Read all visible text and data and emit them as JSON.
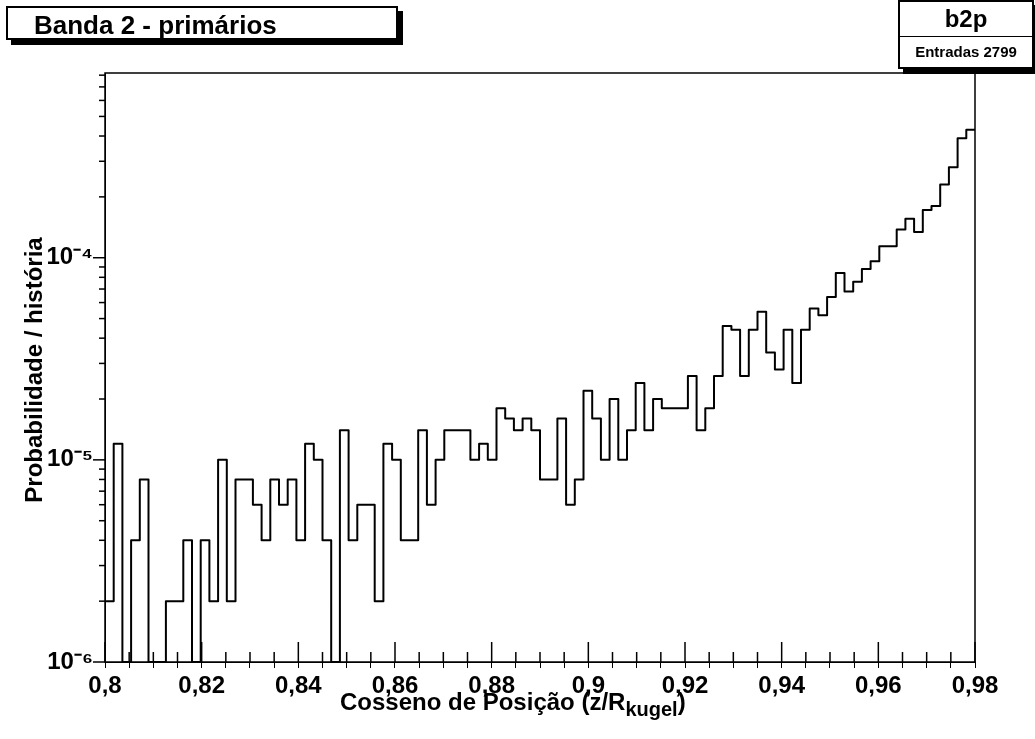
{
  "chart_data": {
    "type": "histogram",
    "title": "Banda 2 - primários",
    "xlabel": "Cosseno de Posição (z/R$_{kugel}$)",
    "ylabel": "Probabilidade / história",
    "annotations": [
      "b2p",
      "Entradas 2799"
    ],
    "color": "#000000",
    "log": "y",
    "bins": [
      0.8,
      0.8018,
      0.8036,
      0.8054,
      0.8072,
      0.809,
      0.8108,
      0.8126,
      0.8144,
      0.8162,
      0.818,
      0.8198,
      0.8216,
      0.8234,
      0.8252,
      0.827,
      0.8288,
      0.8306,
      0.8324,
      0.8342,
      0.836,
      0.8378,
      0.8396,
      0.8414,
      0.8432,
      0.845,
      0.8468,
      0.8486,
      0.8504,
      0.8522,
      0.854,
      0.8558,
      0.8576,
      0.8594,
      0.8612,
      0.863,
      0.8648,
      0.8666,
      0.8684,
      0.8702,
      0.872,
      0.8738,
      0.8756,
      0.8774,
      0.8792,
      0.881,
      0.8828,
      0.8846,
      0.8864,
      0.8882,
      0.89,
      0.8918,
      0.8936,
      0.8954,
      0.8972,
      0.899,
      0.9008,
      0.9026,
      0.9044,
      0.9062,
      0.908,
      0.9098,
      0.9116,
      0.9134,
      0.9152,
      0.917,
      0.9188,
      0.9206,
      0.9224,
      0.9242,
      0.926,
      0.9278,
      0.9296,
      0.9314,
      0.9332,
      0.935,
      0.9368,
      0.9386,
      0.9404,
      0.9422,
      0.944,
      0.9458,
      0.9476,
      0.9494,
      0.9512,
      0.953,
      0.9548,
      0.9566,
      0.9584,
      0.9602,
      0.962,
      0.9638,
      0.9656,
      0.9674,
      0.9692,
      0.971,
      0.9728,
      0.9746,
      0.9764,
      0.9782,
      0.98
    ],
    "values": [
      2e-06,
      1.2e-05,
      null,
      4e-06,
      8e-06,
      null,
      null,
      2e-06,
      2e-06,
      4e-06,
      null,
      4e-06,
      2e-06,
      1e-05,
      2e-06,
      8e-06,
      8e-06,
      6e-06,
      4e-06,
      8e-06,
      6e-06,
      8e-06,
      4e-06,
      1.2e-05,
      1e-05,
      4e-06,
      null,
      1.4e-05,
      4e-06,
      6e-06,
      6e-06,
      2e-06,
      1.2e-05,
      1e-05,
      4e-06,
      4e-06,
      1.4e-05,
      6e-06,
      1e-05,
      1.4e-05,
      1.4e-05,
      1.4e-05,
      1e-05,
      1.2e-05,
      1e-05,
      1.8e-05,
      1.6e-05,
      1.4e-05,
      1.6e-05,
      1.4e-05,
      8e-06,
      8e-06,
      1.6e-05,
      6e-06,
      8e-06,
      2.2e-05,
      1.6e-05,
      1e-05,
      2e-05,
      1e-05,
      1.4e-05,
      2.4e-05,
      1.4e-05,
      2e-05,
      1.8e-05,
      1.8e-05,
      1.8e-05,
      2.6e-05,
      1.4e-05,
      1.8e-05,
      2.6e-05,
      4.6e-05,
      4.4e-05,
      2.6e-05,
      4.4e-05,
      5.4e-05,
      3.4e-05,
      2.8e-05,
      4.4e-05,
      2.4e-05,
      4.4e-05,
      5.6e-05,
      5.2e-05,
      6.4e-05,
      8.4e-05,
      6.8e-05,
      7.6e-05,
      8.8e-05,
      9.6e-05,
      0.000114,
      0.000114,
      0.000138,
      0.000156,
      0.000134,
      0.000172,
      0.00018,
      0.00023,
      0.00028,
      0.00039,
      0.00043
    ],
    "xlim": [
      0.8,
      0.98
    ],
    "xticks": [
      {
        "value": 0.8,
        "label": "0,8"
      },
      {
        "value": 0.805,
        "label": null
      },
      {
        "value": 0.81,
        "label": null
      },
      {
        "value": 0.815,
        "label": null
      },
      {
        "value": 0.82,
        "label": "0,82"
      },
      {
        "value": 0.825,
        "label": null
      },
      {
        "value": 0.83,
        "label": null
      },
      {
        "value": 0.835,
        "label": null
      },
      {
        "value": 0.84,
        "label": "0,84"
      },
      {
        "value": 0.845,
        "label": null
      },
      {
        "value": 0.85,
        "label": null
      },
      {
        "value": 0.855,
        "label": null
      },
      {
        "value": 0.86,
        "label": "0,86"
      },
      {
        "value": 0.865,
        "label": null
      },
      {
        "value": 0.87,
        "label": null
      },
      {
        "value": 0.875,
        "label": null
      },
      {
        "value": 0.88,
        "label": "0,88"
      },
      {
        "value": 0.885,
        "label": null
      },
      {
        "value": 0.89,
        "label": null
      },
      {
        "value": 0.895,
        "label": null
      },
      {
        "value": 0.9,
        "label": "0,9"
      },
      {
        "value": 0.905,
        "label": null
      },
      {
        "value": 0.91,
        "label": null
      },
      {
        "value": 0.915,
        "label": null
      },
      {
        "value": 0.92,
        "label": "0,92"
      },
      {
        "value": 0.925,
        "label": null
      },
      {
        "value": 0.93,
        "label": null
      },
      {
        "value": 0.935,
        "label": null
      },
      {
        "value": 0.94,
        "label": "0,94"
      },
      {
        "value": 0.945,
        "label": null
      },
      {
        "value": 0.95,
        "label": null
      },
      {
        "value": 0.955,
        "label": null
      },
      {
        "value": 0.96,
        "label": "0,96"
      },
      {
        "value": 0.965,
        "label": null
      },
      {
        "value": 0.97,
        "label": null
      },
      {
        "value": 0.975,
        "label": null
      },
      {
        "value": 0.98,
        "label": "0,98"
      }
    ],
    "ylim": [
      1e-06,
      0.00082
    ],
    "yticks": [
      {
        "value": 1e-06,
        "label": "10⁻⁶"
      },
      {
        "value": 2e-06,
        "label": null
      },
      {
        "value": 3e-06,
        "label": null
      },
      {
        "value": 4e-06,
        "label": null
      },
      {
        "value": 5e-06,
        "label": null
      },
      {
        "value": 6e-06,
        "label": null
      },
      {
        "value": 7e-06,
        "label": null
      },
      {
        "value": 8e-06,
        "label": null
      },
      {
        "value": 9e-06,
        "label": null
      },
      {
        "value": 1e-05,
        "label": "10⁻⁵"
      },
      {
        "value": 2e-05,
        "label": null
      },
      {
        "value": 3e-05,
        "label": null
      },
      {
        "value": 4e-05,
        "label": null
      },
      {
        "value": 5e-05,
        "label": null
      },
      {
        "value": 6e-05,
        "label": null
      },
      {
        "value": 7e-05,
        "label": null
      },
      {
        "value": 8e-05,
        "label": null
      },
      {
        "value": 9e-05,
        "label": null
      },
      {
        "value": 0.0001,
        "label": "10⁻⁴"
      },
      {
        "value": 0.0002,
        "label": null
      },
      {
        "value": 0.0003,
        "label": null
      },
      {
        "value": 0.0004,
        "label": null
      },
      {
        "value": 0.0005,
        "label": null
      },
      {
        "value": 0.0006,
        "label": null
      },
      {
        "value": 0.0007,
        "label": null
      },
      {
        "value": 0.0008,
        "label": null
      }
    ]
  }
}
